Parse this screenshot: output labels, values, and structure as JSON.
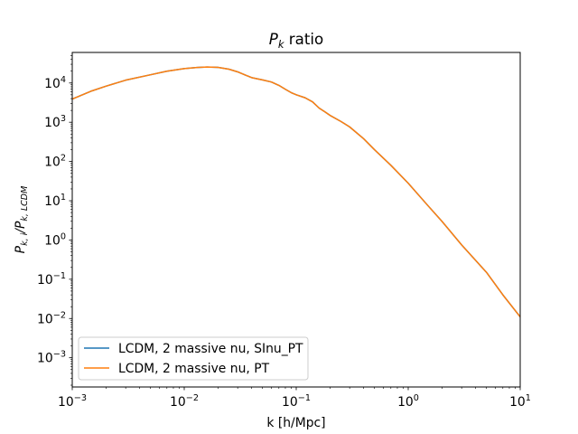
{
  "chart_data": {
    "type": "line",
    "title_main": "P",
    "title_sub": "k",
    "title_rest": " ratio",
    "xlabel": "k [h/Mpc]",
    "ylabel_p1": "P",
    "ylabel_s1": "k, i",
    "ylabel_mid": "/P",
    "ylabel_s2": "k, LCDM",
    "xscale": "log",
    "yscale": "log",
    "xlim": [
      0.001,
      10
    ],
    "ylim": [
      0.00018,
      60000
    ],
    "grid": false,
    "legend_position": "lower-left",
    "x_ticks": [
      {
        "base": "10",
        "exp": "−3",
        "value": 0.001
      },
      {
        "base": "10",
        "exp": "−2",
        "value": 0.01
      },
      {
        "base": "10",
        "exp": "−1",
        "value": 0.1
      },
      {
        "base": "10",
        "exp": "0",
        "value": 1
      },
      {
        "base": "10",
        "exp": "1",
        "value": 10
      }
    ],
    "y_ticks": [
      {
        "base": "10",
        "exp": "−3",
        "value": 0.001
      },
      {
        "base": "10",
        "exp": "−2",
        "value": 0.01
      },
      {
        "base": "10",
        "exp": "−1",
        "value": 0.1
      },
      {
        "base": "10",
        "exp": "0",
        "value": 1
      },
      {
        "base": "10",
        "exp": "1",
        "value": 10
      },
      {
        "base": "10",
        "exp": "2",
        "value": 100
      },
      {
        "base": "10",
        "exp": "3",
        "value": 1000
      },
      {
        "base": "10",
        "exp": "4",
        "value": 10000
      }
    ],
    "series": [
      {
        "name": "LCDM, 2 massive nu, SInu_PT",
        "color": "#1f77b4",
        "x": [
          0.001,
          0.0015,
          0.002,
          0.003,
          0.005,
          0.007,
          0.01,
          0.013,
          0.016,
          0.02,
          0.025,
          0.03,
          0.035,
          0.04,
          0.05,
          0.06,
          0.07,
          0.08,
          0.09,
          0.1,
          0.12,
          0.14,
          0.16,
          0.18,
          0.2,
          0.25,
          0.3,
          0.4,
          0.5,
          0.7,
          1,
          1.5,
          2,
          3,
          5,
          7,
          10
        ],
        "y": [
          3900,
          6300,
          8300,
          11800,
          16200,
          20000,
          23200,
          24800,
          25500,
          25000,
          22500,
          19200,
          16000,
          13700,
          12000,
          10600,
          8700,
          6900,
          5700,
          5000,
          4200,
          3300,
          2300,
          1850,
          1500,
          1050,
          760,
          380,
          200,
          80,
          28,
          7.5,
          3,
          0.75,
          0.15,
          0.04,
          0.011
        ]
      },
      {
        "name": "LCDM, 2 massive nu, PT",
        "color": "#ff7f0e",
        "x": [
          0.001,
          0.0015,
          0.002,
          0.003,
          0.005,
          0.007,
          0.01,
          0.013,
          0.016,
          0.02,
          0.025,
          0.03,
          0.035,
          0.04,
          0.05,
          0.06,
          0.07,
          0.08,
          0.09,
          0.1,
          0.12,
          0.14,
          0.16,
          0.18,
          0.2,
          0.25,
          0.3,
          0.4,
          0.5,
          0.7,
          1,
          1.5,
          2,
          3,
          5,
          7,
          10
        ],
        "y": [
          3900,
          6300,
          8300,
          11800,
          16200,
          20000,
          23200,
          24800,
          25500,
          25000,
          22500,
          19200,
          16000,
          13700,
          12000,
          10600,
          8700,
          6900,
          5700,
          5000,
          4200,
          3300,
          2300,
          1850,
          1500,
          1050,
          760,
          380,
          200,
          80,
          28,
          7.5,
          3,
          0.75,
          0.15,
          0.04,
          0.011
        ]
      }
    ]
  }
}
